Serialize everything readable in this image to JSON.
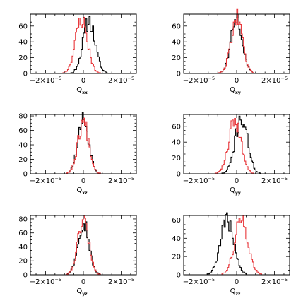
{
  "chart_data": [
    {
      "type": "line",
      "xlabel_main": "Q",
      "xlabel_sub": "xx",
      "xlim": [
        -2.8e-05,
        2.8e-05
      ],
      "ylim": [
        0,
        75
      ],
      "yticks": [
        0,
        20,
        40,
        60
      ],
      "xticks": [
        {
          "base": "−2×10",
          "exp": "−5",
          "value": -2e-05
        },
        {
          "base": "0",
          "exp": "",
          "value": 0
        },
        {
          "base": "2×10",
          "exp": "−5",
          "value": 2e-05
        }
      ],
      "series": [
        {
          "color": "#000000",
          "mu": 3e-06,
          "sigma": 3.2e-06,
          "peak": 66,
          "seed": 11
        },
        {
          "color": "#e8363a",
          "mu": -1e-06,
          "sigma": 3.2e-06,
          "peak": 68,
          "seed": 23
        }
      ]
    },
    {
      "type": "line",
      "xlabel_main": "Q",
      "xlabel_sub": "xy",
      "xlim": [
        -2.8e-05,
        2.8e-05
      ],
      "ylim": [
        0,
        75
      ],
      "yticks": [
        0,
        20,
        40,
        60
      ],
      "xticks": [
        {
          "base": "−2×10",
          "exp": "−5",
          "value": -2e-05
        },
        {
          "base": "0",
          "exp": "",
          "value": 0
        },
        {
          "base": "2×10",
          "exp": "−5",
          "value": 2e-05
        }
      ],
      "series": [
        {
          "color": "#000000",
          "mu": 0,
          "sigma": 3e-06,
          "peak": 70,
          "seed": 31
        },
        {
          "color": "#e8363a",
          "mu": 0,
          "sigma": 3e-06,
          "peak": 70,
          "seed": 47
        }
      ]
    },
    {
      "type": "line",
      "xlabel_main": "Q",
      "xlabel_sub": "xz",
      "xlim": [
        -2.8e-05,
        2.8e-05
      ],
      "ylim": [
        0,
        82
      ],
      "yticks": [
        0,
        20,
        40,
        60,
        80
      ],
      "xticks": [
        {
          "base": "−2×10",
          "exp": "−5",
          "value": -2e-05
        },
        {
          "base": "0",
          "exp": "",
          "value": 0
        },
        {
          "base": "2×10",
          "exp": "−5",
          "value": 2e-05
        }
      ],
      "series": [
        {
          "color": "#000000",
          "mu": 0,
          "sigma": 2.9e-06,
          "peak": 76,
          "seed": 53
        },
        {
          "color": "#e8363a",
          "mu": 0,
          "sigma": 2.9e-06,
          "peak": 72,
          "seed": 67
        }
      ]
    },
    {
      "type": "line",
      "xlabel_main": "Q",
      "xlabel_sub": "yy",
      "xlim": [
        -2.8e-05,
        2.8e-05
      ],
      "ylim": [
        0,
        75
      ],
      "yticks": [
        0,
        20,
        40,
        60
      ],
      "xticks": [
        {
          "base": "−2×10",
          "exp": "−5",
          "value": -2e-05
        },
        {
          "base": "0",
          "exp": "",
          "value": 0
        },
        {
          "base": "2×10",
          "exp": "−5",
          "value": 2e-05
        }
      ],
      "series": [
        {
          "color": "#000000",
          "mu": 2.5e-06,
          "sigma": 3.3e-06,
          "peak": 70,
          "seed": 71
        },
        {
          "color": "#e8363a",
          "mu": -1e-06,
          "sigma": 3.3e-06,
          "peak": 66,
          "seed": 83
        }
      ]
    },
    {
      "type": "line",
      "xlabel_main": "Q",
      "xlabel_sub": "yz",
      "xlim": [
        -2.8e-05,
        2.8e-05
      ],
      "ylim": [
        0,
        85
      ],
      "yticks": [
        0,
        20,
        40,
        60,
        80
      ],
      "xticks": [
        {
          "base": "−2×10",
          "exp": "−5",
          "value": -2e-05
        },
        {
          "base": "0",
          "exp": "",
          "value": 0
        },
        {
          "base": "2×10",
          "exp": "−5",
          "value": 2e-05
        }
      ],
      "series": [
        {
          "color": "#000000",
          "mu": 0,
          "sigma": 2.9e-06,
          "peak": 78,
          "seed": 97
        },
        {
          "color": "#e8363a",
          "mu": 0,
          "sigma": 2.9e-06,
          "peak": 80,
          "seed": 101
        }
      ]
    },
    {
      "type": "line",
      "xlabel_main": "Q",
      "xlabel_sub": "zz",
      "xlim": [
        -2.8e-05,
        2.8e-05
      ],
      "ylim": [
        0,
        65
      ],
      "yticks": [
        0,
        20,
        40,
        60
      ],
      "xticks": [
        {
          "base": "−2×10",
          "exp": "−5",
          "value": -2e-05
        },
        {
          "base": "0",
          "exp": "",
          "value": 0
        },
        {
          "base": "2×10",
          "exp": "−5",
          "value": 2e-05
        }
      ],
      "series": [
        {
          "color": "#000000",
          "mu": -5e-06,
          "sigma": 3.5e-06,
          "peak": 60,
          "seed": 109
        },
        {
          "color": "#e8363a",
          "mu": 2.5e-06,
          "sigma": 3.5e-06,
          "peak": 60,
          "seed": 127
        }
      ]
    }
  ]
}
